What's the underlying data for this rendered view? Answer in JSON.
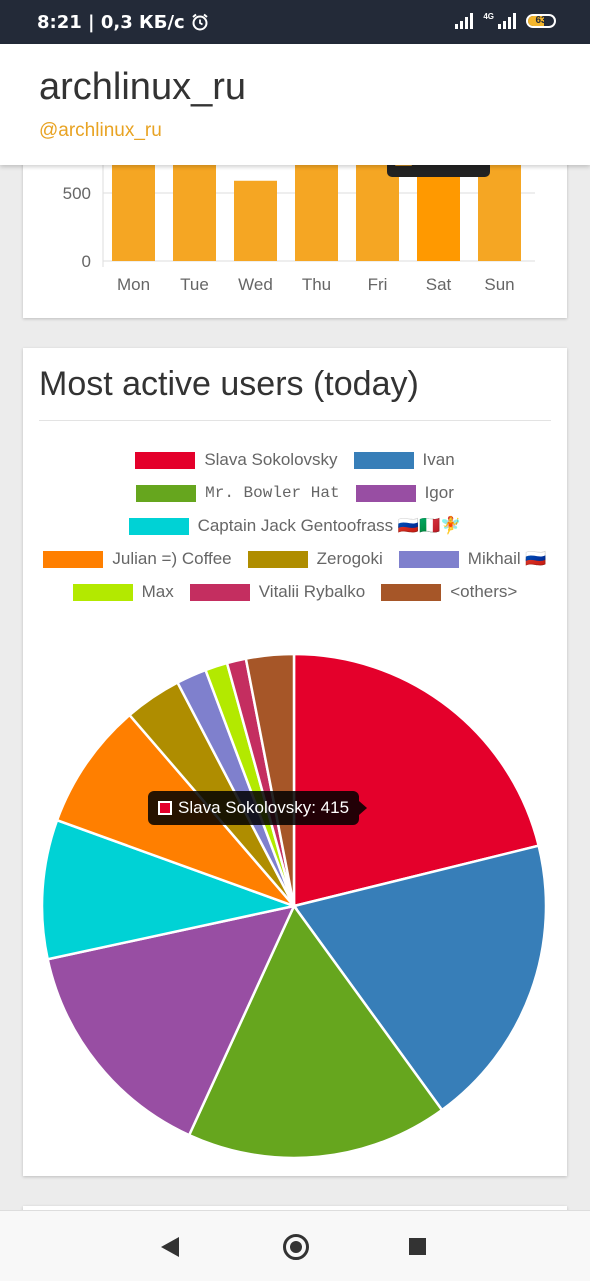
{
  "status_bar": {
    "time": "8:21",
    "speed": "0,3 КБ/с",
    "network": "4G",
    "battery": "63",
    "icons": [
      "alarm-icon",
      "signal-icon",
      "signal-4g-icon",
      "battery-icon"
    ]
  },
  "header": {
    "title": "archlinux_ru",
    "handle": "@archlinux_ru"
  },
  "weekday_chart": {
    "chart_data": {
      "type": "bar",
      "categories": [
        "Mon",
        "Tue",
        "Wed",
        "Thu",
        "Fri",
        "Sat",
        "Sun"
      ],
      "values": [
        760,
        760,
        590,
        760,
        760,
        760,
        760
      ],
      "highlighted": "Sat",
      "y_ticks": [
        0,
        500
      ],
      "colors": {
        "bar": "#f5a623",
        "highlight": "#ff9900"
      }
    }
  },
  "users_card": {
    "heading": "Most active users (today)",
    "tooltip": {
      "label": "Slava Sokolovsky: 415",
      "color": "#e4002b"
    },
    "chart_data": {
      "type": "pie",
      "labels": [
        "Slava Sokolovsky",
        "Ivan",
        "Mr. Bowler Hat",
        "Igor",
        "Captain Jack Gentoofrass 🇷🇺🇮🇹🧚",
        "Julian =) Coffee",
        "Zerogoki",
        "Mikhail 🇷🇺",
        "Max",
        "Vitalii Rybalko",
        "<others>"
      ],
      "values": [
        415,
        370,
        330,
        290,
        175,
        160,
        72,
        38,
        28,
        24,
        60
      ],
      "colors": [
        "#e4002b",
        "#377eb8",
        "#66a61e",
        "#984ea3",
        "#00d2d5",
        "#ff7f00",
        "#af8d00",
        "#7f80cd",
        "#b3e900",
        "#c42e60",
        "#a65628"
      ]
    }
  },
  "nav_bar": {
    "icons": [
      "back-icon",
      "home-icon",
      "recent-apps-icon"
    ]
  }
}
